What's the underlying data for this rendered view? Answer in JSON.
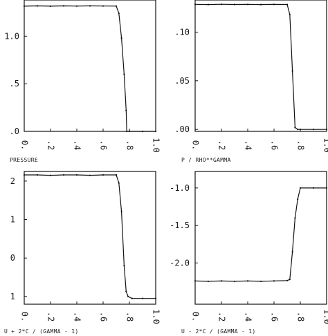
{
  "chart_data": [
    {
      "type": "line",
      "title": "",
      "xlabel": "",
      "ylabel": "",
      "xlim": [
        0,
        1
      ],
      "ylim": [
        0,
        1.38
      ],
      "xticks": [
        "0.",
        ".2",
        ".4",
        ".6",
        ".8",
        "1.0"
      ],
      "yticks": [
        {
          "v": 1.0,
          "label": "1.0"
        },
        {
          "v": 0.5,
          "label": ".5"
        },
        {
          "v": 0.0,
          "label": ".0"
        }
      ],
      "x": [
        0.0,
        0.1,
        0.2,
        0.3,
        0.4,
        0.5,
        0.6,
        0.7,
        0.72,
        0.74,
        0.76,
        0.775,
        0.78,
        0.8,
        0.9,
        1.0
      ],
      "y": [
        1.315,
        1.318,
        1.315,
        1.318,
        1.316,
        1.318,
        1.317,
        1.316,
        1.24,
        0.98,
        0.6,
        0.22,
        0.0,
        0.0,
        0.0,
        0.0
      ],
      "bottom_label": ""
    },
    {
      "type": "line",
      "title": "",
      "xlabel": "",
      "ylabel": "",
      "xlim": [
        0,
        1
      ],
      "ylim": [
        -0.002,
        0.133
      ],
      "xticks": [
        "0.",
        ".2",
        ".4",
        ".6",
        ".8",
        "1.0"
      ],
      "yticks": [
        {
          "v": 0.1,
          "label": ".10"
        },
        {
          "v": 0.05,
          "label": ".05"
        },
        {
          "v": 0.0,
          "label": ".00"
        }
      ],
      "x": [
        0.0,
        0.1,
        0.2,
        0.3,
        0.4,
        0.5,
        0.6,
        0.7,
        0.72,
        0.74,
        0.76,
        0.78,
        0.8,
        0.9,
        1.0
      ],
      "y": [
        0.1285,
        0.1283,
        0.1286,
        0.1284,
        0.1285,
        0.1283,
        0.1285,
        0.1284,
        0.118,
        0.06,
        0.002,
        0.0,
        0.0,
        0.0,
        0.0
      ],
      "bottom_label": "PRESSURE"
    },
    {
      "type": "line",
      "title": "",
      "xlabel": "",
      "ylabel": "",
      "xlim": [
        0,
        1
      ],
      "ylim": [
        -1.2,
        2.25
      ],
      "xticks": [
        "0.",
        ".2",
        ".4",
        ".6",
        ".8",
        "1.0"
      ],
      "yticks": [
        {
          "v": 2,
          "label": "2"
        },
        {
          "v": 1,
          "label": "1"
        },
        {
          "v": 0,
          "label": "0"
        },
        {
          "v": -1,
          "label": "1"
        }
      ],
      "x": [
        0.0,
        0.1,
        0.2,
        0.3,
        0.4,
        0.5,
        0.6,
        0.7,
        0.72,
        0.74,
        0.76,
        0.775,
        0.79,
        0.82,
        0.9,
        1.0
      ],
      "y": [
        2.16,
        2.16,
        2.15,
        2.16,
        2.16,
        2.15,
        2.16,
        2.16,
        1.95,
        1.2,
        -0.2,
        -0.87,
        -1.0,
        -1.05,
        -1.05,
        -1.05
      ],
      "bottom_label": "P / RHO**GAMMA"
    },
    {
      "type": "line",
      "title": "",
      "xlabel": "",
      "ylabel": "",
      "xlim": [
        0,
        1
      ],
      "ylim": [
        -2.55,
        -0.78
      ],
      "xticks": [
        "0.",
        ".2",
        ".4",
        ".6",
        ".8",
        "1.0"
      ],
      "yticks": [
        {
          "v": -1.0,
          "label": "-1.0"
        },
        {
          "v": -1.5,
          "label": "-1.5"
        },
        {
          "v": -2.0,
          "label": "-2.0"
        }
      ],
      "x": [
        0.0,
        0.1,
        0.2,
        0.3,
        0.4,
        0.5,
        0.6,
        0.7,
        0.72,
        0.74,
        0.76,
        0.78,
        0.8,
        0.9,
        1.0
      ],
      "y": [
        -2.24,
        -2.245,
        -2.24,
        -2.245,
        -2.24,
        -2.245,
        -2.24,
        -2.235,
        -2.22,
        -1.85,
        -1.4,
        -1.15,
        -1.0,
        -1.0,
        -1.0
      ],
      "bottom_label": ""
    }
  ],
  "footer": {
    "left_label": "U  +  2*C / (GAMMA - 1)",
    "right_label": "U  -  2*C / (GAMMA - 1)"
  }
}
